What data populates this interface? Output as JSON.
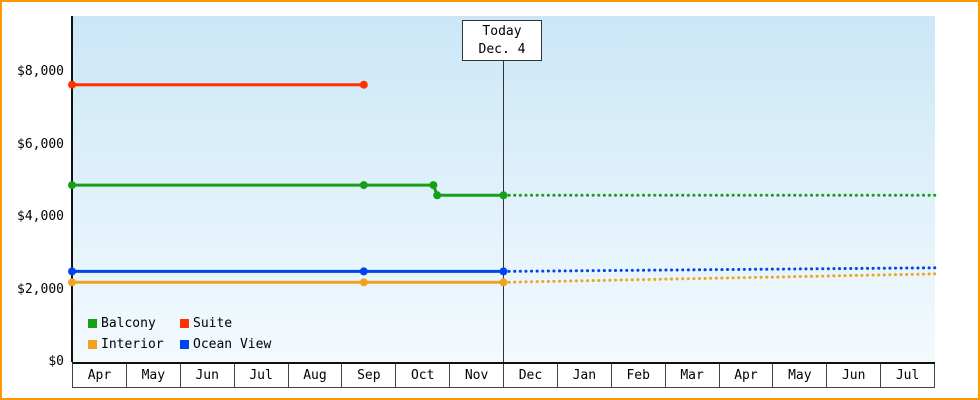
{
  "frame": {
    "border_color": "#ff9900",
    "plot_bg_top": "#cbe7f7",
    "plot_bg_bottom": "#f3fafe"
  },
  "chart_data": {
    "type": "line",
    "title": "",
    "xlabel": "",
    "ylabel": "",
    "x_axis": {
      "month_labels": [
        "Apr",
        "May",
        "Jun",
        "Jul",
        "Aug",
        "Sep",
        "Oct",
        "Nov",
        "Dec",
        "Jan",
        "Feb",
        "Mar",
        "Apr",
        "May",
        "Jun",
        "Jul"
      ]
    },
    "y_axis": {
      "min": 0,
      "max": 8000,
      "tick_values": [
        0,
        2000,
        4000,
        6000,
        8000
      ],
      "tick_labels": [
        "$0",
        "$2,000",
        "$4,000",
        "$6,000",
        "$8,000"
      ]
    },
    "today": {
      "label_line1": "Today",
      "label_line2": "Dec. 4",
      "month_position": 8.0
    },
    "legend_position": "bottom-left",
    "grid": false,
    "series": [
      {
        "name": "Balcony",
        "color": "#17a017",
        "solid": [
          [
            0,
            4880
          ],
          [
            5.41,
            4880
          ],
          [
            6.7,
            4880
          ],
          [
            6.77,
            4600
          ],
          [
            8,
            4600
          ]
        ],
        "dotted": [
          [
            8,
            4600
          ],
          [
            16,
            4600
          ]
        ],
        "markers": [
          [
            0,
            4880
          ],
          [
            5.41,
            4880
          ],
          [
            6.7,
            4880
          ],
          [
            6.77,
            4600
          ],
          [
            8,
            4600
          ]
        ]
      },
      {
        "name": "Suite",
        "color": "#ff3300",
        "solid": [
          [
            0,
            7650
          ],
          [
            5.41,
            7650
          ]
        ],
        "dotted": [],
        "markers": [
          [
            0,
            7650
          ],
          [
            5.41,
            7650
          ]
        ]
      },
      {
        "name": "Interior",
        "color": "#efa420",
        "solid": [
          [
            0,
            2200
          ],
          [
            5.41,
            2200
          ],
          [
            8,
            2200
          ]
        ],
        "dotted": [
          [
            8,
            2200
          ],
          [
            16,
            2430
          ]
        ],
        "markers": [
          [
            0,
            2200
          ],
          [
            5.41,
            2200
          ],
          [
            8,
            2200
          ]
        ]
      },
      {
        "name": "Ocean View",
        "color": "#0044ee",
        "solid": [
          [
            0,
            2500
          ],
          [
            5.41,
            2500
          ],
          [
            8,
            2500
          ]
        ],
        "dotted": [
          [
            8,
            2500
          ],
          [
            16,
            2600
          ]
        ],
        "markers": [
          [
            0,
            2500
          ],
          [
            5.41,
            2500
          ],
          [
            8,
            2500
          ]
        ]
      }
    ],
    "legend": [
      {
        "label": "Balcony",
        "color": "#17a017"
      },
      {
        "label": "Suite",
        "color": "#ff3300"
      },
      {
        "label": "Interior",
        "color": "#efa420"
      },
      {
        "label": "Ocean View",
        "color": "#0044ee"
      }
    ]
  }
}
